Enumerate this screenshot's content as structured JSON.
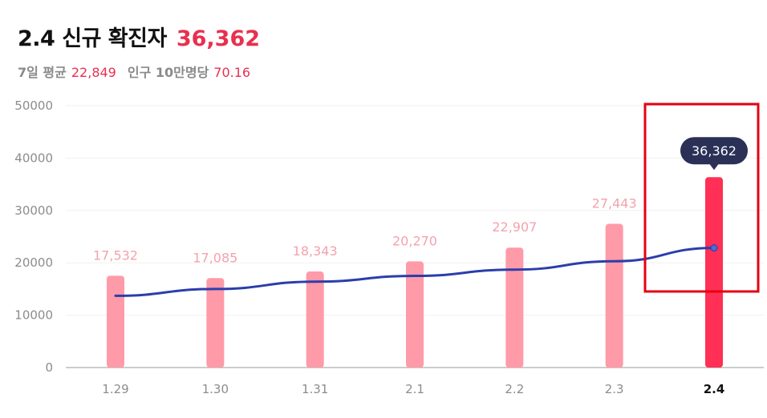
{
  "header": {
    "title": "2.4 신규 확진자",
    "total": "36,362",
    "avg_label": "7일 평균",
    "avg_value": "22,849",
    "per_label": "인구 10만명당",
    "per_value": "70.16"
  },
  "colors": {
    "bar": "#ff9aa8",
    "bar_active": "#ff2f55",
    "line": "#2b3eab",
    "highlight_box": "#e60012",
    "tooltip_bg": "#2a3056"
  },
  "chart_data": {
    "type": "bar",
    "categories": [
      "1.29",
      "1.30",
      "1.31",
      "2.1",
      "2.2",
      "2.3",
      "2.4"
    ],
    "values": [
      17532,
      17085,
      18343,
      20270,
      22907,
      27443,
      36362
    ],
    "value_labels": [
      "17,532",
      "17,085",
      "18,343",
      "20,270",
      "22,907",
      "27,443",
      "36,362"
    ],
    "line_series": [
      13700,
      15000,
      16400,
      17500,
      18700,
      20300,
      22849
    ],
    "active_category": "2.4",
    "ylim": [
      0,
      50000
    ],
    "yticks": [
      "50000",
      "40000",
      "30000",
      "20000",
      "10000",
      "0"
    ],
    "grid": true,
    "title": "",
    "xlabel": "",
    "ylabel": ""
  }
}
